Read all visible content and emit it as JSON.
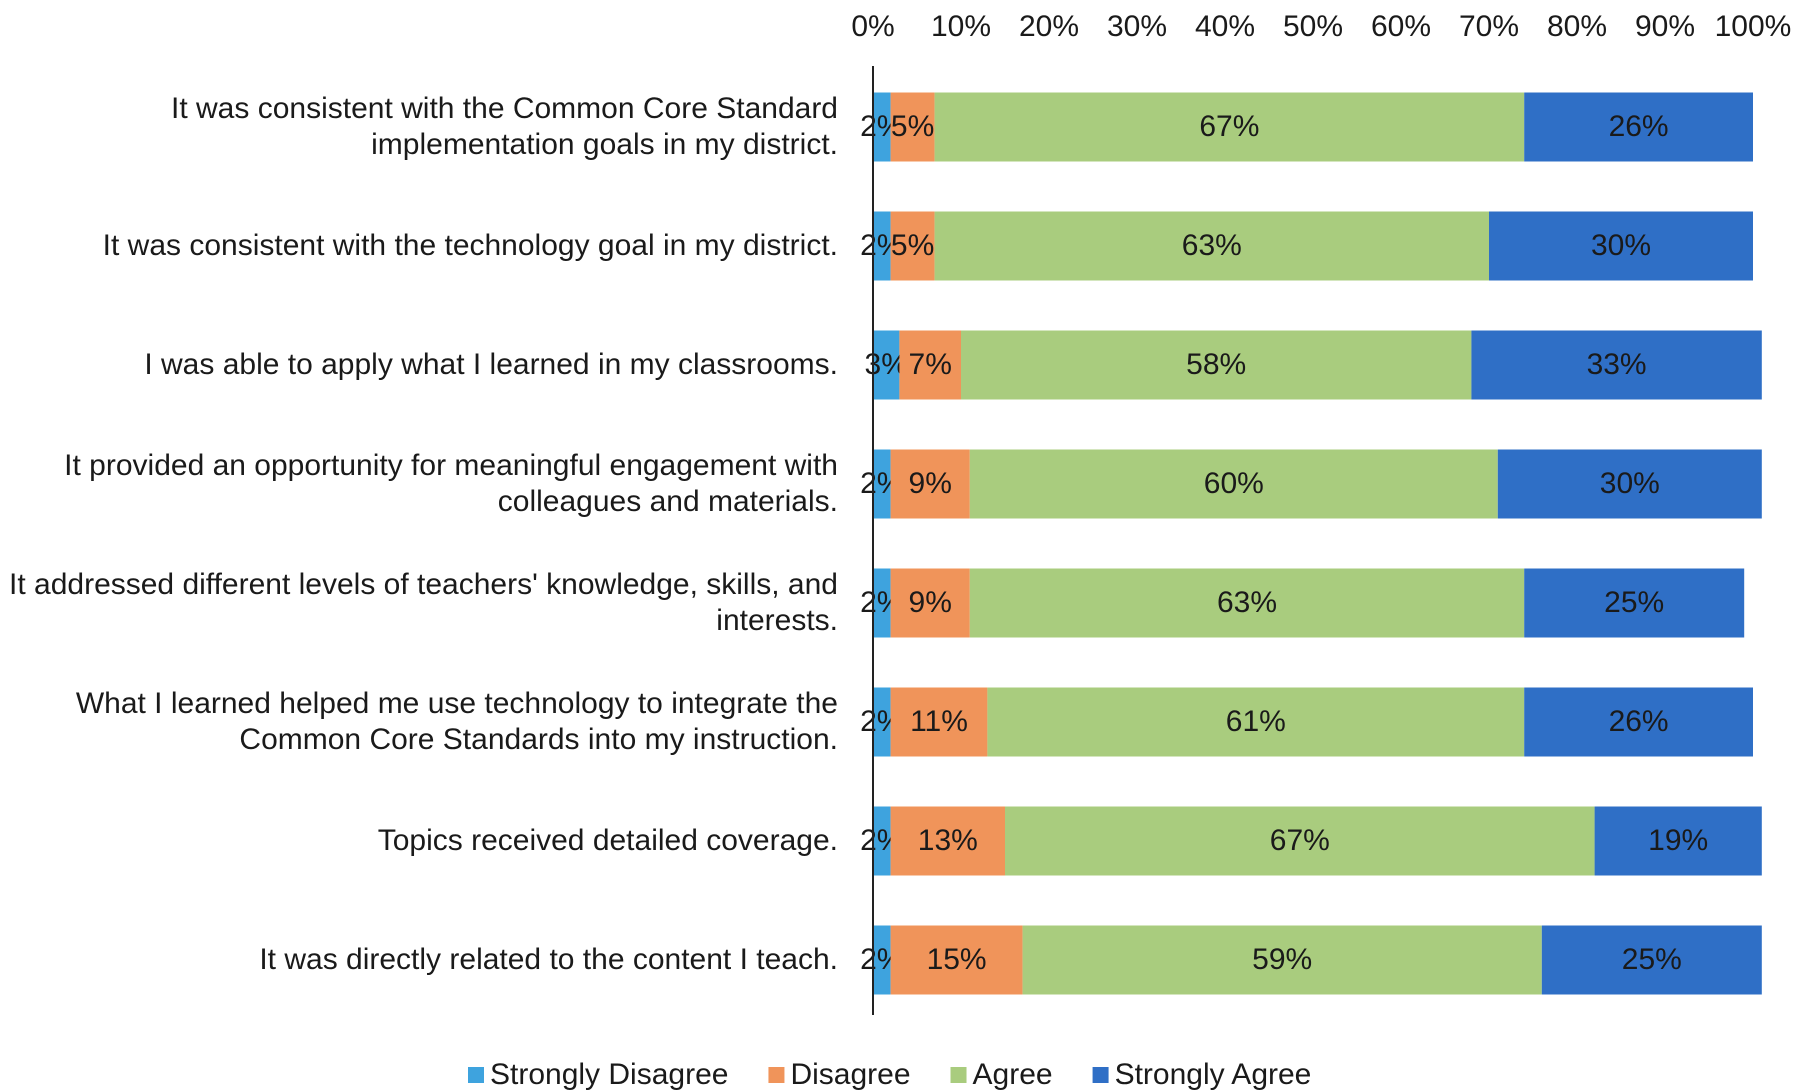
{
  "chart_data": {
    "type": "stacked_barh",
    "categories": [
      "It was consistent with the Common Core Standard implementation goals in my district.",
      "It was consistent with the technology goal in my district.",
      "I was able to apply what I learned in my classrooms.",
      "It provided an opportunity for meaningful engagement with colleagues and materials.",
      "It addressed different levels of teachers' knowledge, skills, and interests.",
      "What I learned helped me use technology to integrate the Common Core Standards into my instruction.",
      "Topics received detailed coverage.",
      "It was directly related to the content I teach."
    ],
    "series": [
      {
        "name": "Strongly Disagree",
        "color": "#3ea3de",
        "values": [
          2,
          2,
          3,
          2,
          2,
          2,
          2,
          2
        ],
        "value_labels": [
          "2%",
          "2%",
          "3%",
          "2%",
          "2%",
          "2%",
          "2%",
          "2%"
        ]
      },
      {
        "name": "Disagree",
        "color": "#f0945a",
        "values": [
          5,
          5,
          7,
          9,
          9,
          11,
          13,
          15
        ],
        "value_labels": [
          "5%",
          "5%",
          "7%",
          "9%",
          "9%",
          "11%",
          "13%",
          "15%"
        ]
      },
      {
        "name": "Agree",
        "color": "#a9cc7e",
        "values": [
          67,
          63,
          58,
          60,
          63,
          61,
          67,
          59
        ],
        "value_labels": [
          "67%",
          "63%",
          "58%",
          "60%",
          "63%",
          "61%",
          "67%",
          "59%"
        ]
      },
      {
        "name": "Strongly Agree",
        "color": "#2f6fc6",
        "values": [
          26,
          30,
          33,
          30,
          25,
          26,
          19,
          25
        ],
        "value_labels": [
          "26%",
          "30%",
          "33%",
          "30%",
          "25%",
          "26%",
          "19%",
          "25%"
        ]
      }
    ],
    "xlim": [
      0,
      100
    ],
    "xticks": [
      {
        "value": 0,
        "label": "0%"
      },
      {
        "value": 10,
        "label": "10%"
      },
      {
        "value": 20,
        "label": "20%"
      },
      {
        "value": 30,
        "label": "30%"
      },
      {
        "value": 40,
        "label": "40%"
      },
      {
        "value": 50,
        "label": "50%"
      },
      {
        "value": 60,
        "label": "60%"
      },
      {
        "value": 70,
        "label": "70%"
      },
      {
        "value": 80,
        "label": "80%"
      },
      {
        "value": 90,
        "label": "90%"
      },
      {
        "value": 100,
        "label": "100%"
      }
    ],
    "legend": "bottom"
  }
}
